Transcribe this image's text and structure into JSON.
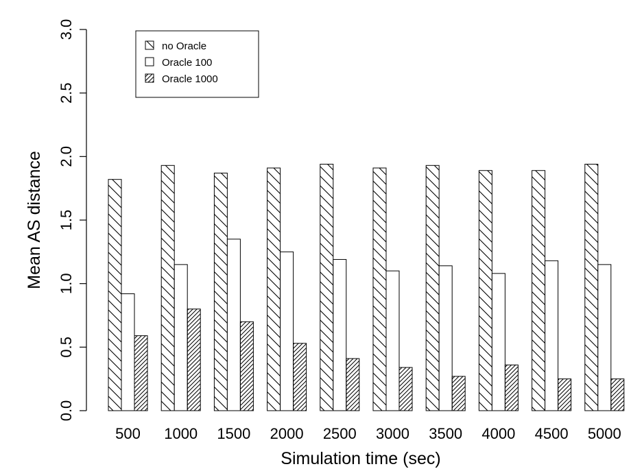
{
  "chart_data": {
    "type": "bar",
    "title": "",
    "xlabel": "Simulation time (sec)",
    "ylabel": "Mean AS distance",
    "ylim": [
      0,
      3.0
    ],
    "yticks": [
      "0.0",
      "0.5",
      "1.0",
      "1.5",
      "2.0",
      "2.5",
      "3.0"
    ],
    "categories": [
      "500",
      "1000",
      "1500",
      "2000",
      "2500",
      "3000",
      "3500",
      "4000",
      "4500",
      "5000"
    ],
    "series": [
      {
        "name": "no Oracle",
        "pattern": "backslash-hatch",
        "values": [
          1.82,
          1.93,
          1.87,
          1.91,
          1.94,
          1.91,
          1.93,
          1.89,
          1.89,
          1.94
        ]
      },
      {
        "name": "Oracle 100",
        "pattern": "empty",
        "values": [
          0.92,
          1.15,
          1.35,
          1.25,
          1.19,
          1.1,
          1.14,
          1.08,
          1.18,
          1.15
        ]
      },
      {
        "name": "Oracle 1000",
        "pattern": "dense-slash-hatch",
        "values": [
          0.59,
          0.8,
          0.7,
          0.53,
          0.41,
          0.34,
          0.27,
          0.36,
          0.25,
          0.25
        ]
      }
    ],
    "legend_position": "top-left",
    "grid": false
  }
}
